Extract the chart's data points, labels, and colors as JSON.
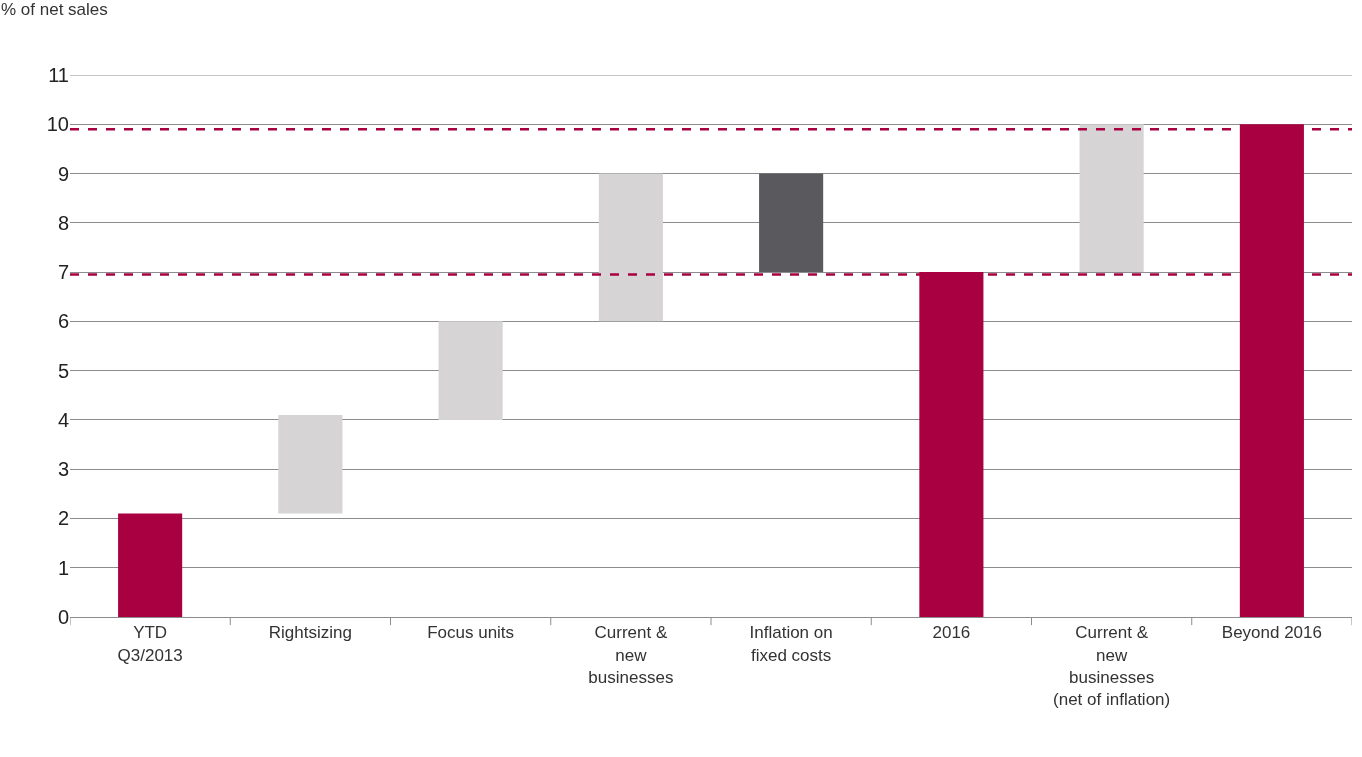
{
  "chart_data": {
    "type": "bar",
    "ylabel": "% of net sales",
    "categories": [
      "YTD\nQ3/2013",
      "Rightsizing",
      "Focus units",
      "Current &\nnew\nbusinesses",
      "Inflation on\nfixed costs",
      "2016",
      "Current &\nnew\nbusinesses\n(net of inflation)",
      "Beyond 2016"
    ],
    "values": [
      2.1,
      2.0,
      2.0,
      3.0,
      2.0,
      7.0,
      3.0,
      10.0
    ],
    "base": [
      0,
      2.1,
      4.0,
      6.0,
      7.0,
      0,
      7.0,
      0
    ],
    "colors": [
      "#a80040",
      "#d6d4d5",
      "#d6d4d5",
      "#d6d4d5",
      "#5a595e",
      "#a80040",
      "#d6d4d5",
      "#a80040"
    ],
    "ylim": [
      0,
      11
    ],
    "yticks": [
      0,
      1,
      2,
      3,
      4,
      5,
      6,
      7,
      8,
      9,
      10,
      11
    ],
    "grid": "y",
    "ref_lines": [
      {
        "axis": "y",
        "value": 9.9,
        "label": null,
        "color": "#a80040",
        "line_style": "dashed"
      },
      {
        "axis": "y",
        "value": 6.95,
        "label": null,
        "color": "#a80040",
        "line_style": "dashed"
      }
    ]
  }
}
